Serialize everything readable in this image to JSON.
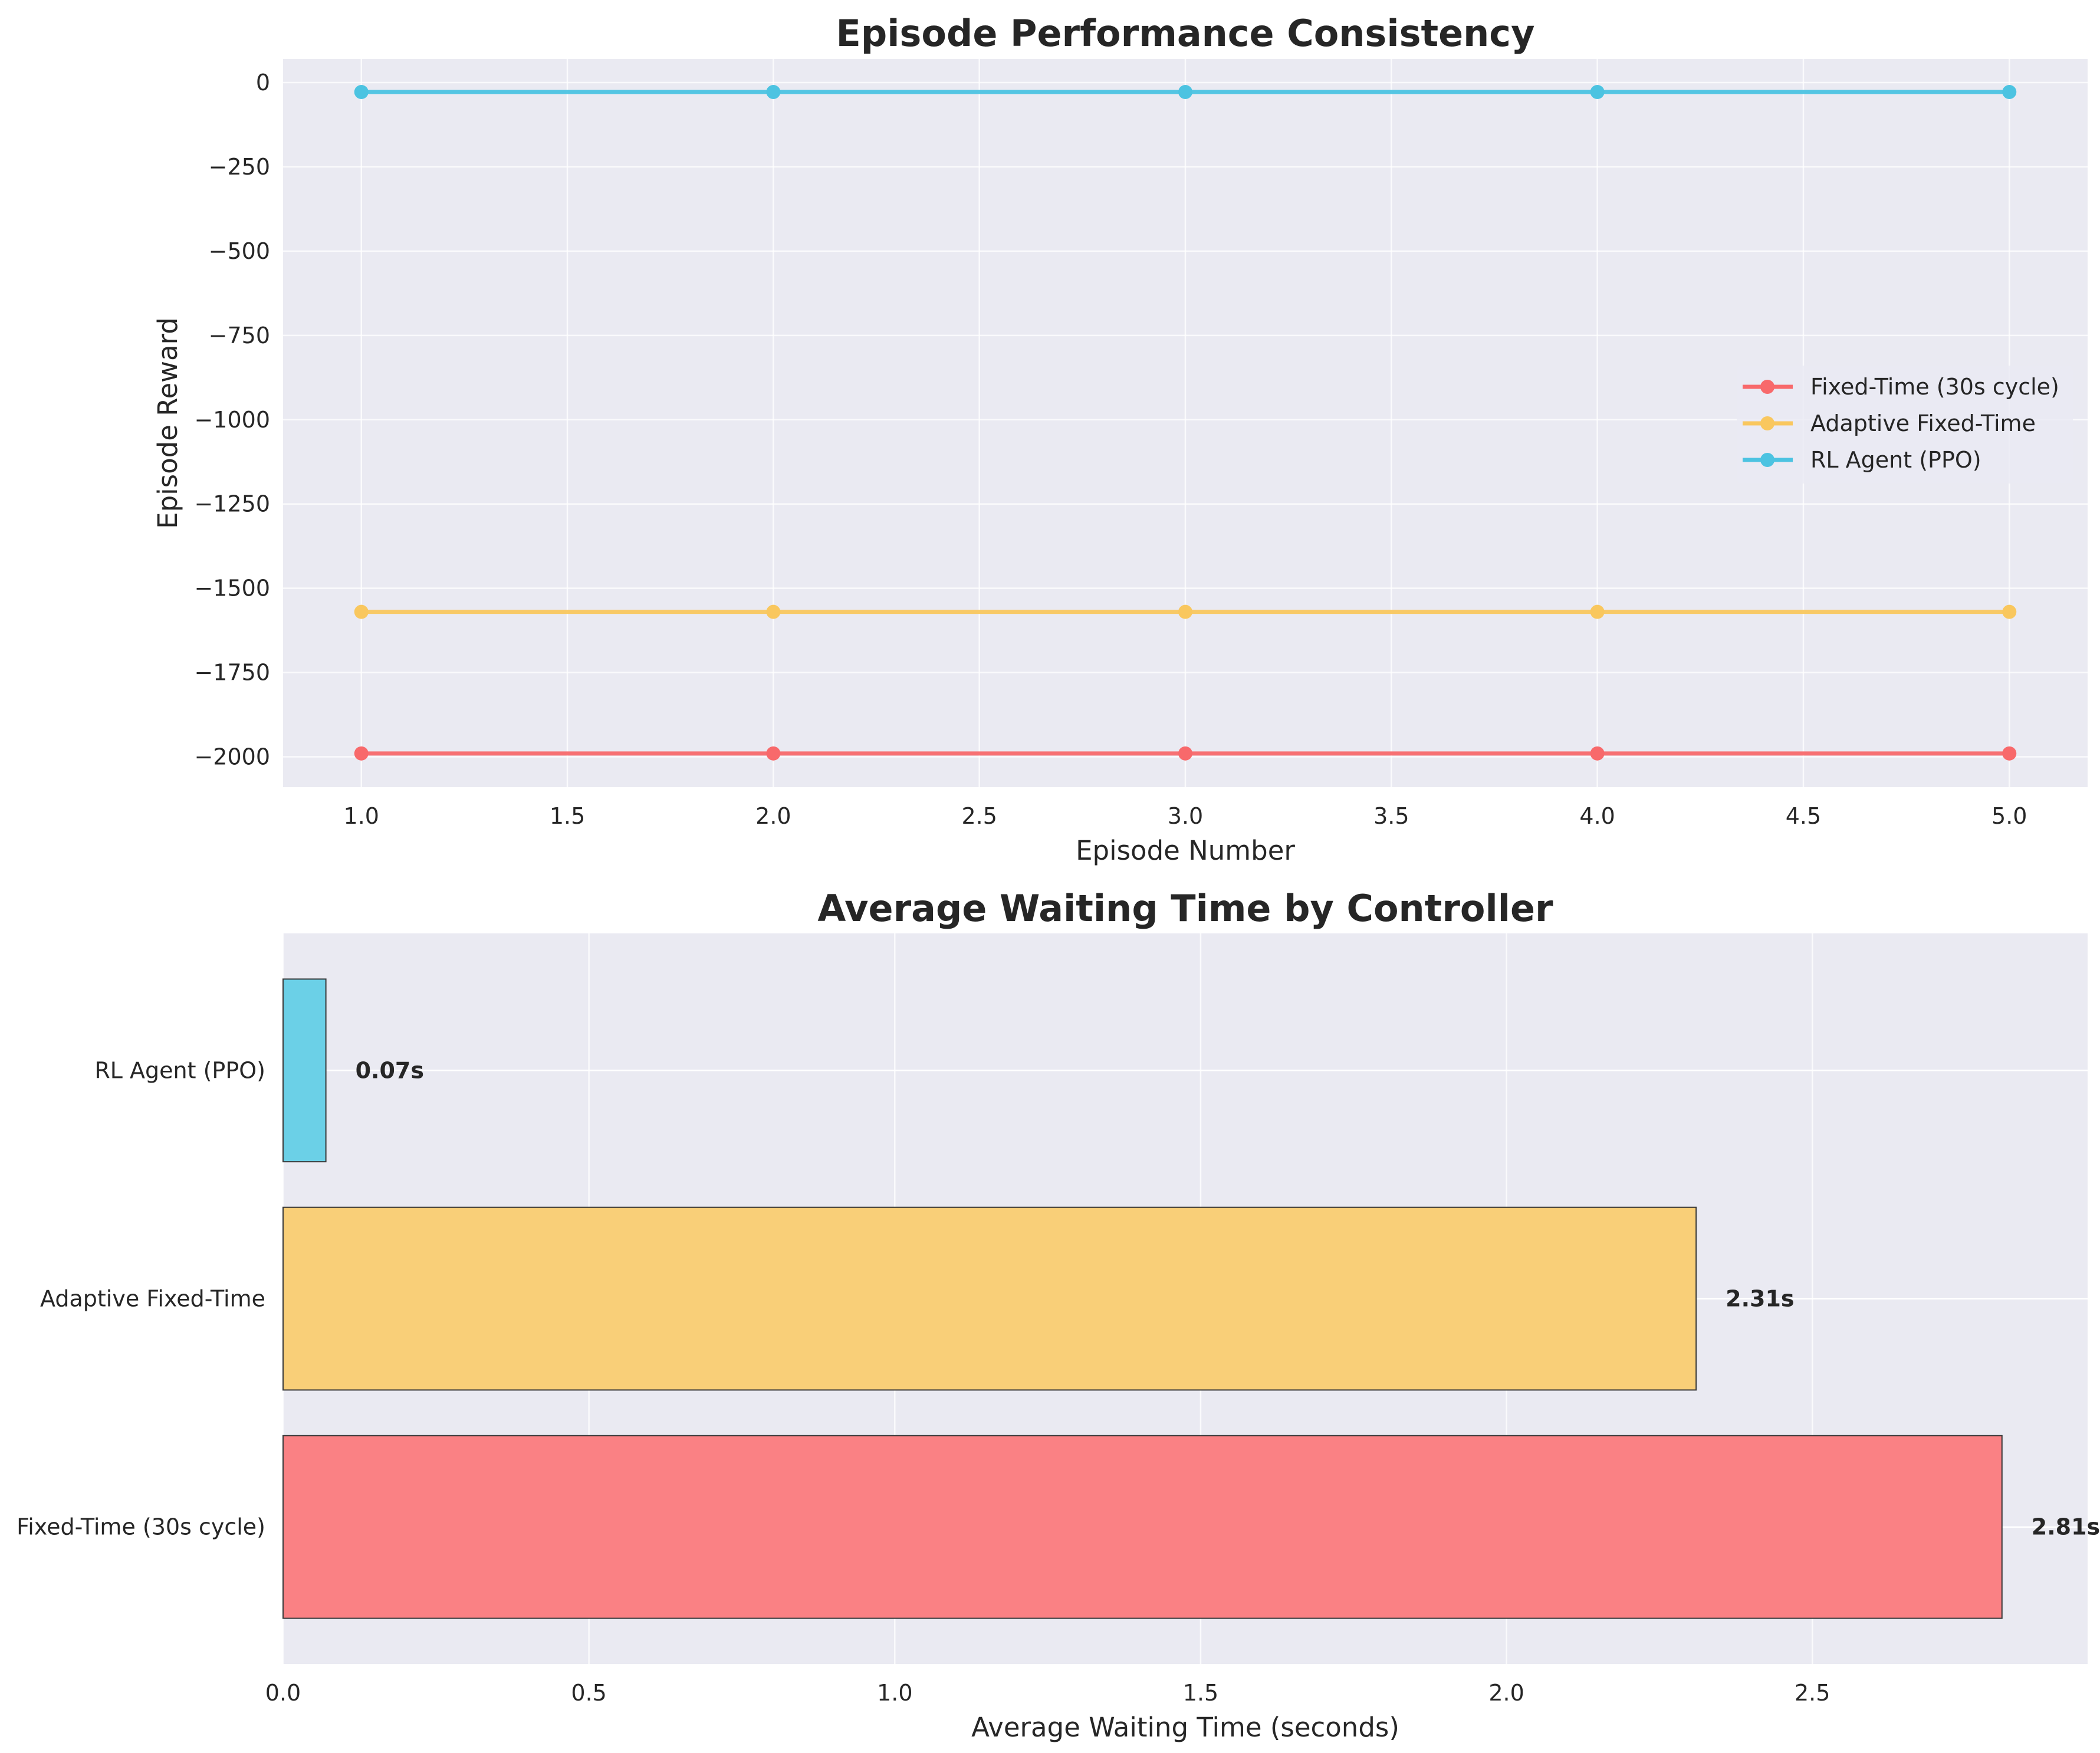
{
  "chart_data": [
    {
      "type": "line",
      "title": "Episode Performance Consistency",
      "xlabel": "Episode Number",
      "ylabel": "Episode Reward",
      "xlim": [
        0.81,
        5.19
      ],
      "ylim": [
        -2090,
        70
      ],
      "x_ticks": [
        1.0,
        1.5,
        2.0,
        2.5,
        3.0,
        3.5,
        4.0,
        4.5,
        5.0
      ],
      "x_tick_labels": [
        "1.0",
        "1.5",
        "2.0",
        "2.5",
        "3.0",
        "3.5",
        "4.0",
        "4.5",
        "5.0"
      ],
      "y_ticks": [
        0,
        -250,
        -500,
        -750,
        -1000,
        -1250,
        -1500,
        -1750,
        -2000
      ],
      "y_tick_labels": [
        "0",
        "−250",
        "−500",
        "−750",
        "−1000",
        "−1250",
        "−1500",
        "−1750",
        "−2000"
      ],
      "grid": true,
      "legend": "center-right",
      "x": [
        1,
        2,
        3,
        4,
        5
      ],
      "series": [
        {
          "name": "Fixed-Time (30s cycle)",
          "color": "#f8696b",
          "values": [
            -1990,
            -1990,
            -1990,
            -1990,
            -1990
          ]
        },
        {
          "name": "Adaptive Fixed-Time",
          "color": "#f9c75e",
          "values": [
            -1570,
            -1570,
            -1570,
            -1570,
            -1570
          ]
        },
        {
          "name": "RL Agent (PPO)",
          "color": "#4cc3e1",
          "values": [
            -28,
            -28,
            -28,
            -28,
            -28
          ]
        }
      ]
    },
    {
      "type": "bar",
      "orientation": "horizontal",
      "title": "Average Waiting Time by Controller",
      "xlabel": "Average Waiting Time (seconds)",
      "ylabel": "",
      "xlim": [
        0,
        2.95
      ],
      "x_ticks": [
        0.0,
        0.5,
        1.0,
        1.5,
        2.0,
        2.5
      ],
      "x_tick_labels": [
        "0.0",
        "0.5",
        "1.0",
        "1.5",
        "2.0",
        "2.5"
      ],
      "grid": true,
      "categories": [
        "Fixed-Time (30s cycle)",
        "Adaptive Fixed-Time",
        "RL Agent (PPO)"
      ],
      "values": [
        2.81,
        2.31,
        0.07
      ],
      "value_labels": [
        "2.81s",
        "2.31s",
        "0.07s"
      ],
      "colors": [
        "#fa8184",
        "#f9cf78",
        "#6bd0e7"
      ]
    }
  ]
}
